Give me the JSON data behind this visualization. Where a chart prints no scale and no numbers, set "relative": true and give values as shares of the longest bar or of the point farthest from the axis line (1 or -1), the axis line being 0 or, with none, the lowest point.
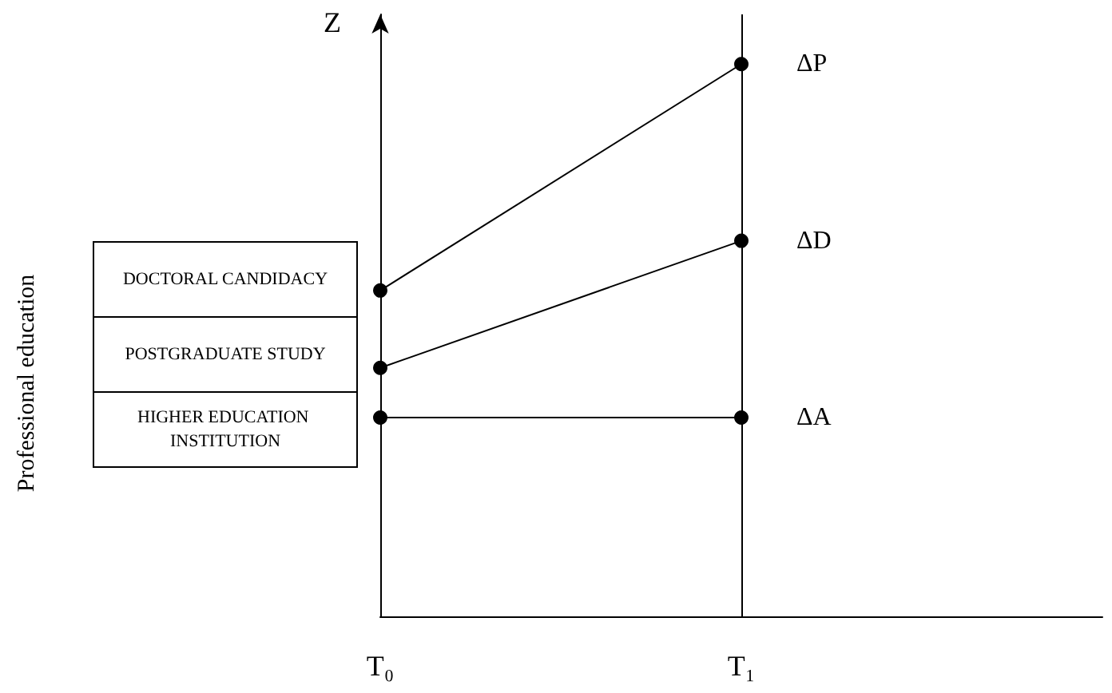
{
  "chart_data": {
    "type": "line",
    "relative": true,
    "ylabel": "Z",
    "categories": [
      "T₀",
      "T₁",
      null
    ],
    "series": [
      {
        "name": "ΔP",
        "color": "#000000",
        "values": [
          0.59,
          1,
          null
        ]
      },
      {
        "name": "ΔD",
        "color": "#000000",
        "values": [
          0.45,
          0.68,
          null
        ]
      },
      {
        "name": "ΔA",
        "color": "#000000",
        "values": [
          0.36,
          0.36,
          null
        ]
      }
    ],
    "annotations": [
      "DOCTORAL CANDIDACY",
      "POSTGRADUATE STUDY",
      "HIGHER EDUCATION INSTITUTION",
      "Professional education"
    ],
    "ref_lines": [
      {
        "axis": "x",
        "value": "T₁",
        "color": "#000000"
      }
    ],
    "marker": "circle",
    "line_style": "solid",
    "legend": false,
    "grid": false
  }
}
